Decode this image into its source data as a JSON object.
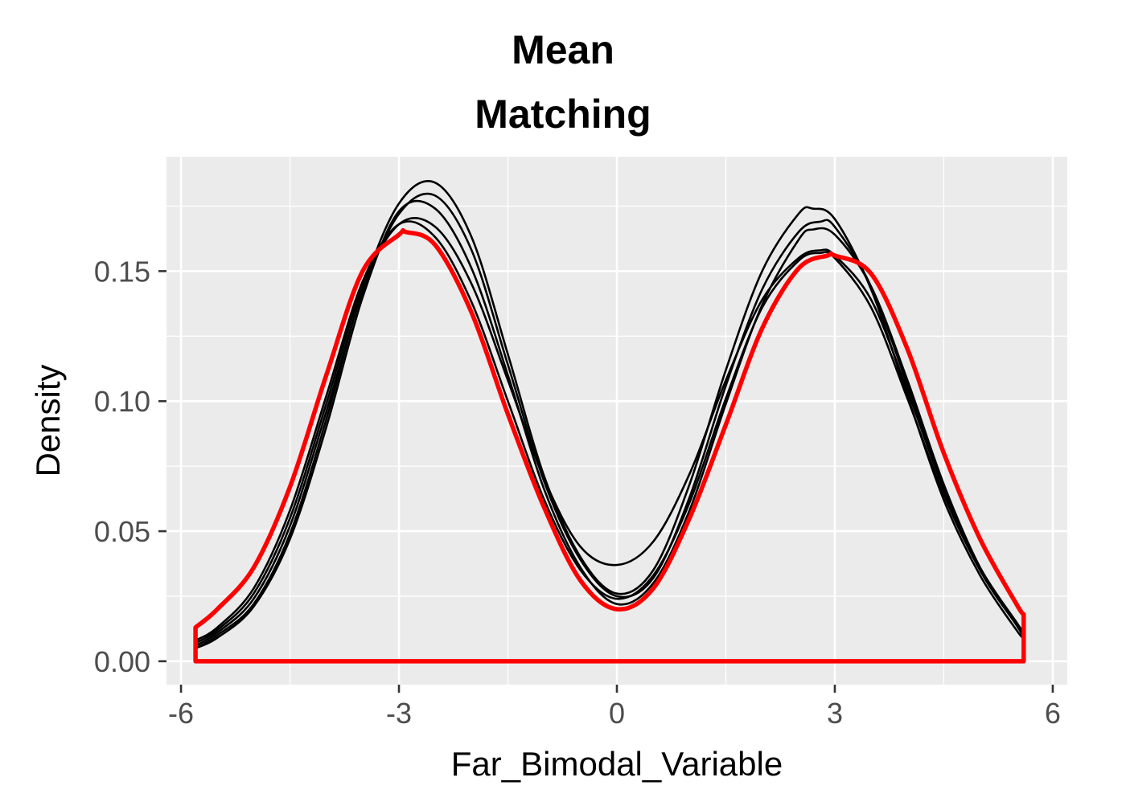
{
  "chart_data": {
    "type": "line",
    "title_lines": [
      "Mean",
      "Matching"
    ],
    "xlabel": "Far_Bimodal_Variable",
    "ylabel": "Density",
    "xlim": [
      -6.2,
      6.2
    ],
    "ylim": [
      -0.009,
      0.194
    ],
    "x_ticks": [
      -6,
      -3,
      0,
      3,
      6
    ],
    "x_tick_labels": [
      "-6",
      "-3",
      "0",
      "3",
      "6"
    ],
    "y_ticks": [
      0.0,
      0.05,
      0.1,
      0.15
    ],
    "y_tick_labels": [
      "0.00",
      "0.05",
      "0.10",
      "0.15"
    ],
    "grid": true,
    "legend": "none",
    "colors": {
      "panel_background": "#ebebeb",
      "grid": "#ffffff",
      "matched_series": "#000000",
      "original_series": "#ff0000"
    },
    "series": [
      {
        "color": "#ff0000",
        "closed_to_baseline": true,
        "x": [
          -5.8,
          -5.5,
          -5.0,
          -4.5,
          -4.0,
          -3.5,
          -3.0,
          -2.9,
          -2.5,
          -2.0,
          -1.5,
          -1.0,
          -0.5,
          0.0,
          0.5,
          1.0,
          1.5,
          2.0,
          2.5,
          2.9,
          3.0,
          3.5,
          4.0,
          4.5,
          5.0,
          5.5,
          5.6
        ],
        "y": [
          0.013,
          0.02,
          0.036,
          0.067,
          0.11,
          0.15,
          0.164,
          0.165,
          0.16,
          0.134,
          0.095,
          0.059,
          0.031,
          0.02,
          0.028,
          0.055,
          0.091,
          0.128,
          0.151,
          0.156,
          0.156,
          0.149,
          0.12,
          0.08,
          0.047,
          0.022,
          0.018
        ]
      },
      {
        "color": "#000000",
        "x": [
          -5.8,
          -5.5,
          -5.0,
          -4.5,
          -4.0,
          -3.5,
          -3.0,
          -2.5,
          -2.0,
          -1.5,
          -1.0,
          -0.5,
          0.0,
          0.5,
          1.0,
          1.5,
          2.0,
          2.5,
          2.7,
          3.0,
          3.5,
          4.0,
          4.5,
          5.0,
          5.5,
          5.6
        ],
        "y": [
          0.005,
          0.01,
          0.022,
          0.049,
          0.093,
          0.143,
          0.176,
          0.184,
          0.163,
          0.118,
          0.071,
          0.04,
          0.026,
          0.035,
          0.068,
          0.112,
          0.15,
          0.172,
          0.174,
          0.17,
          0.143,
          0.102,
          0.062,
          0.033,
          0.012,
          0.009
        ]
      },
      {
        "color": "#000000",
        "x": [
          -5.8,
          -5.5,
          -5.0,
          -4.5,
          -4.0,
          -3.5,
          -3.0,
          -2.5,
          -2.0,
          -1.5,
          -1.0,
          -0.5,
          0.0,
          0.5,
          1.0,
          1.5,
          2.0,
          2.5,
          2.8,
          3.0,
          3.5,
          4.0,
          4.5,
          5.0,
          5.5,
          5.6
        ],
        "y": [
          0.006,
          0.011,
          0.024,
          0.052,
          0.096,
          0.142,
          0.172,
          0.179,
          0.158,
          0.114,
          0.069,
          0.039,
          0.025,
          0.032,
          0.063,
          0.106,
          0.143,
          0.165,
          0.169,
          0.167,
          0.144,
          0.106,
          0.066,
          0.035,
          0.014,
          0.01
        ]
      },
      {
        "color": "#000000",
        "x": [
          -5.8,
          -5.5,
          -5.0,
          -4.5,
          -4.0,
          -3.5,
          -3.0,
          -2.5,
          -2.0,
          -1.5,
          -1.0,
          -0.5,
          0.0,
          0.5,
          1.0,
          1.5,
          2.0,
          2.5,
          2.8,
          3.0,
          3.5,
          4.0,
          4.5,
          5.0,
          5.5,
          5.6
        ],
        "y": [
          0.007,
          0.012,
          0.026,
          0.055,
          0.099,
          0.144,
          0.168,
          0.167,
          0.145,
          0.108,
          0.07,
          0.044,
          0.037,
          0.046,
          0.072,
          0.108,
          0.139,
          0.155,
          0.158,
          0.156,
          0.139,
          0.104,
          0.066,
          0.036,
          0.015,
          0.011
        ]
      },
      {
        "color": "#000000",
        "x": [
          -5.8,
          -5.5,
          -5.0,
          -4.5,
          -4.0,
          -3.5,
          -3.0,
          -2.5,
          -2.0,
          -1.5,
          -1.0,
          -0.5,
          0.0,
          0.5,
          1.0,
          1.5,
          2.0,
          2.5,
          2.8,
          3.0,
          3.5,
          4.0,
          4.5,
          5.0,
          5.5,
          5.6
        ],
        "y": [
          0.008,
          0.013,
          0.028,
          0.058,
          0.102,
          0.146,
          0.168,
          0.163,
          0.138,
          0.1,
          0.062,
          0.035,
          0.024,
          0.033,
          0.061,
          0.101,
          0.136,
          0.154,
          0.157,
          0.155,
          0.136,
          0.101,
          0.064,
          0.035,
          0.014,
          0.01
        ]
      },
      {
        "color": "#000000",
        "x": [
          -5.8,
          -5.5,
          -5.0,
          -4.5,
          -4.0,
          -3.5,
          -3.0,
          -2.5,
          -2.0,
          -1.5,
          -1.0,
          -0.5,
          0.0,
          0.5,
          1.0,
          1.5,
          2.0,
          2.5,
          2.7,
          3.0,
          3.5,
          4.0,
          4.5,
          5.0,
          5.5,
          5.6
        ],
        "y": [
          0.005,
          0.009,
          0.021,
          0.047,
          0.09,
          0.14,
          0.173,
          0.174,
          0.151,
          0.11,
          0.066,
          0.036,
          0.022,
          0.03,
          0.058,
          0.099,
          0.137,
          0.162,
          0.166,
          0.164,
          0.144,
          0.108,
          0.068,
          0.036,
          0.014,
          0.009
        ]
      }
    ]
  }
}
